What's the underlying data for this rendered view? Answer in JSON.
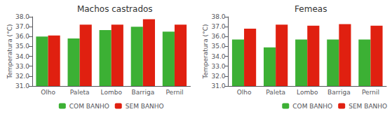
{
  "chart_data": [
    {
      "type": "bar",
      "title": "Machos castrados",
      "categories": [
        "Olho",
        "Paleta",
        "Lombo",
        "Barriga",
        "Pernil"
      ],
      "series": [
        {
          "name": "COM BANHO",
          "color": "#3cb034",
          "values": [
            36.0,
            35.8,
            36.65,
            37.0,
            36.5
          ]
        },
        {
          "name": "SEM BANHO",
          "color": "#e02010",
          "values": [
            36.1,
            37.2,
            37.2,
            37.75,
            37.2
          ]
        }
      ],
      "ylabel": "Temperatura (°C)",
      "ylim": [
        31.0,
        38.0
      ],
      "yticks": [
        {
          "value": 31,
          "label": "31.0"
        },
        {
          "value": 32,
          "label": "32.0"
        },
        {
          "value": 33,
          "label": "33.0"
        },
        {
          "value": 34,
          "label": "34.0"
        },
        {
          "value": 35,
          "label": "35.0"
        },
        {
          "value": 36,
          "label": "36.0"
        },
        {
          "value": 37,
          "label": "37.0"
        },
        {
          "value": 38,
          "label": "38.0"
        }
      ],
      "grid": false,
      "legend": "bottom"
    },
    {
      "type": "bar",
      "title": "Femeas",
      "categories": [
        "Olho",
        "Paleta",
        "Lombo",
        "Barriga",
        "Pernil"
      ],
      "series": [
        {
          "name": "COM BANHO",
          "color": "#3cb034",
          "values": [
            35.7,
            34.9,
            35.7,
            35.7,
            35.7
          ]
        },
        {
          "name": "SEM BANHO",
          "color": "#e02010",
          "values": [
            36.8,
            37.2,
            37.1,
            37.25,
            37.1
          ]
        }
      ],
      "ylabel": "Temperatura (°C)",
      "ylim": [
        31.0,
        38.0
      ],
      "yticks": [
        {
          "value": 31,
          "label": "31.0"
        },
        {
          "value": 32,
          "label": "32.0"
        },
        {
          "value": 33,
          "label": "33.0"
        },
        {
          "value": 34,
          "label": "34.0"
        },
        {
          "value": 35,
          "label": "35.0"
        },
        {
          "value": 36,
          "label": "36.0"
        },
        {
          "value": 37,
          "label": "37.0"
        },
        {
          "value": 38,
          "label": "38.0"
        }
      ],
      "grid": false,
      "legend": "bottom"
    }
  ]
}
